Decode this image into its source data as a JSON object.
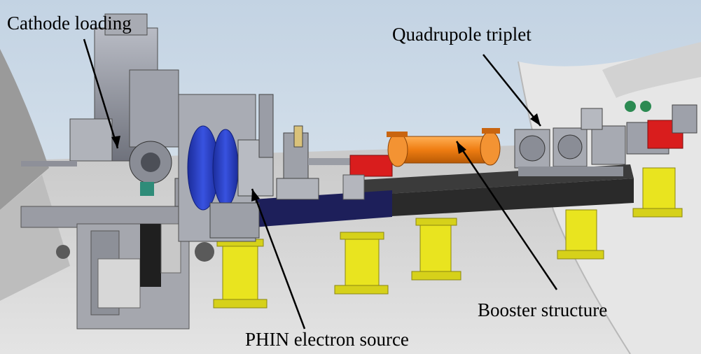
{
  "labels": {
    "cathode_loading": "Cathode loading",
    "quadrupole_triplet": "Quadrupole triplet",
    "booster_structure": "Booster structure",
    "phin_electron_source": "PHIN electron source"
  },
  "colors": {
    "sky": "#c9d8e6",
    "floor": "#cfcfcf",
    "wall": "#e7e7e7",
    "machine_grey": "#8c8f99",
    "booster_orange": "#ef7d12",
    "magnet_red": "#d91d1d",
    "support_yellow": "#e9e41f",
    "solenoid_blue": "#2740c9",
    "beam_pipe_navy": "#1d1f5a"
  }
}
